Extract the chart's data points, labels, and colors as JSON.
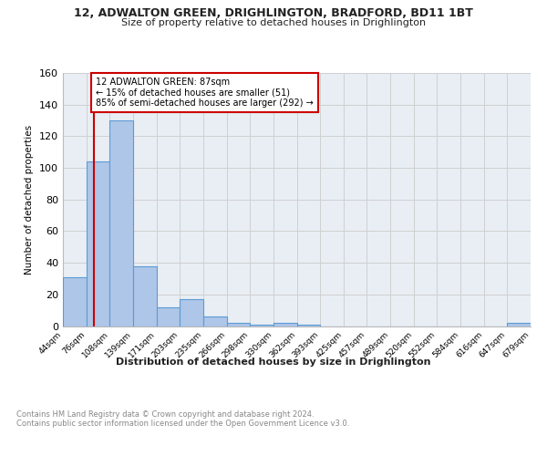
{
  "title_line1": "12, ADWALTON GREEN, DRIGHLINGTON, BRADFORD, BD11 1BT",
  "title_line2": "Size of property relative to detached houses in Drighlington",
  "xlabel": "Distribution of detached houses by size in Drighlington",
  "ylabel": "Number of detached properties",
  "footnote": "Contains HM Land Registry data © Crown copyright and database right 2024.\nContains public sector information licensed under the Open Government Licence v3.0.",
  "bins": [
    "44sqm",
    "76sqm",
    "108sqm",
    "139sqm",
    "171sqm",
    "203sqm",
    "235sqm",
    "266sqm",
    "298sqm",
    "330sqm",
    "362sqm",
    "393sqm",
    "425sqm",
    "457sqm",
    "489sqm",
    "520sqm",
    "552sqm",
    "584sqm",
    "616sqm",
    "647sqm",
    "679sqm"
  ],
  "bar_heights": [
    31,
    104,
    130,
    38,
    12,
    17,
    6,
    2,
    1,
    2,
    1,
    0,
    0,
    0,
    0,
    0,
    0,
    0,
    0,
    2
  ],
  "bar_color": "#aec6e8",
  "bar_edge_color": "#5b9bd5",
  "grid_color": "#d0d0d0",
  "bg_color": "#e8eef4",
  "vline_x_index": 1.34,
  "vline_color": "#cc0000",
  "annotation_text": "12 ADWALTON GREEN: 87sqm\n← 15% of detached houses are smaller (51)\n85% of semi-detached houses are larger (292) →",
  "annotation_box_color": "#ffffff",
  "annotation_box_edge": "#cc0000",
  "ylim": [
    0,
    160
  ],
  "yticks": [
    0,
    20,
    40,
    60,
    80,
    100,
    120,
    140,
    160
  ],
  "bin_width": 32,
  "n_bars": 20
}
